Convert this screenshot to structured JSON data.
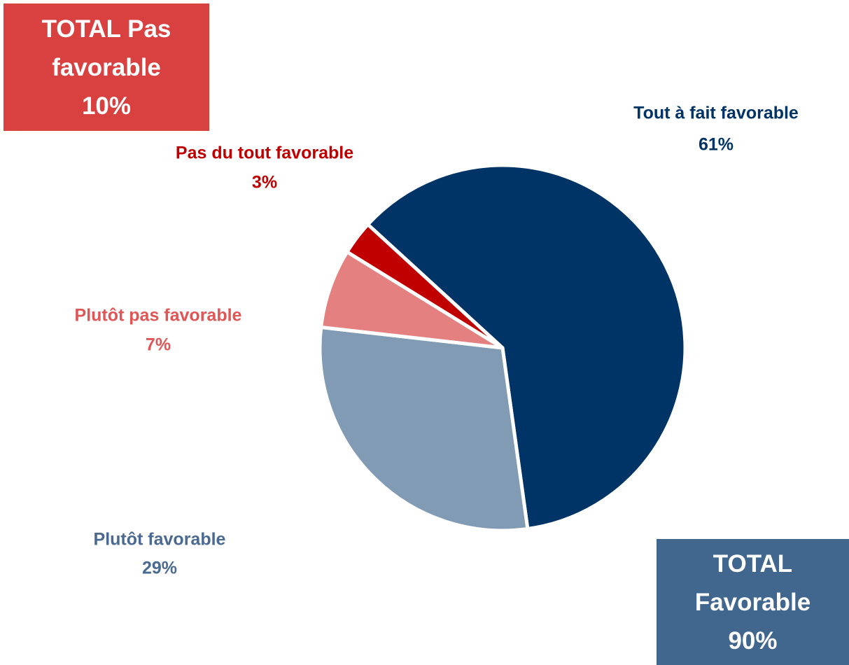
{
  "chart_data": {
    "type": "pie",
    "categories": [
      "Tout à fait favorable",
      "Plutôt favorable",
      "Plutôt pas favorable",
      "Pas du tout favorable"
    ],
    "values": [
      61,
      29,
      7,
      3
    ],
    "value_labels": [
      "61%",
      "29%",
      "7%",
      "3%"
    ],
    "colors": [
      "#003366",
      "#819bb4",
      "#e48080",
      "#c00000"
    ],
    "label_colors": [
      "#003366",
      "#4a6a91",
      "#e05555",
      "#c00000"
    ],
    "totals": [
      {
        "label": "TOTAL Pas favorable",
        "value": 10,
        "value_label": "10%",
        "color": "#d94040"
      },
      {
        "label": "TOTAL Favorable",
        "value": 90,
        "value_label": "90%",
        "color": "#41678e"
      }
    ]
  }
}
